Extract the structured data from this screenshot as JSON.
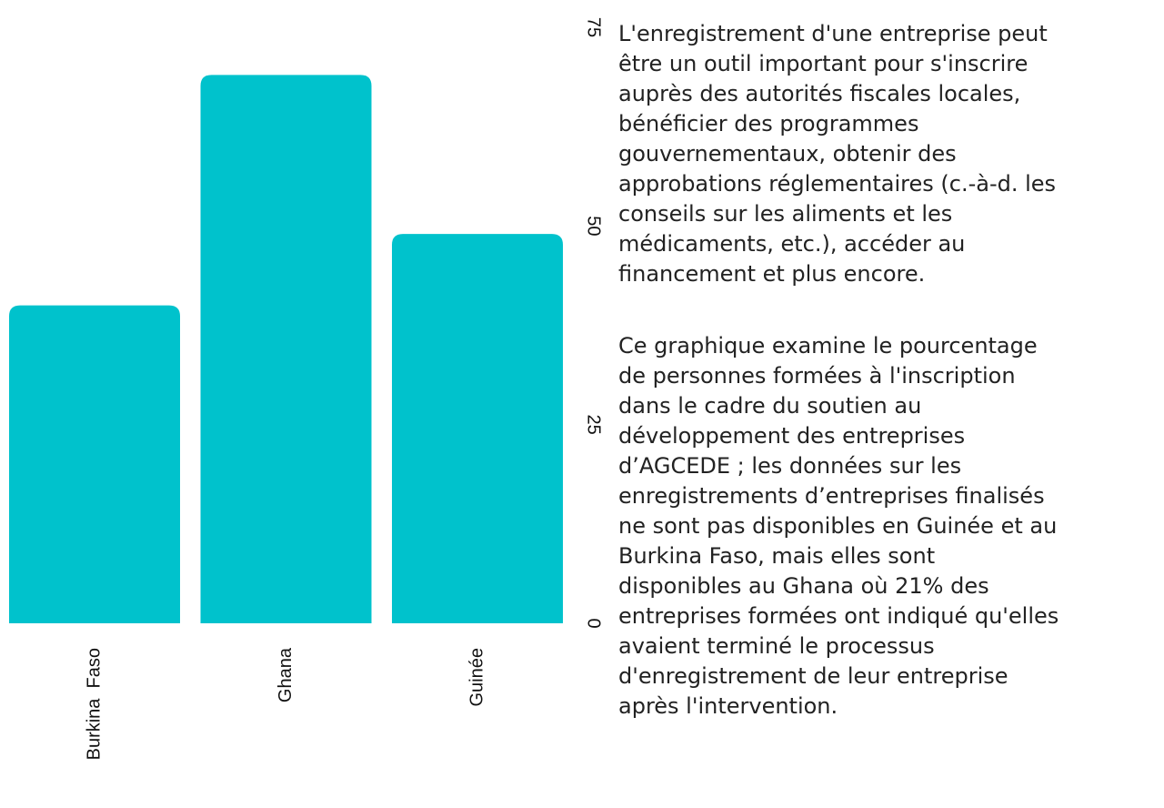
{
  "chart_data": {
    "type": "bar",
    "categories": [
      "Burkina  Faso",
      "Ghana",
      "Guinée"
    ],
    "values": [
      40,
      69,
      49
    ],
    "color": "#00c2cc",
    "ylim": [
      0,
      75
    ],
    "yticks": [
      0,
      25,
      50,
      75
    ],
    "grid": false
  },
  "description": [
    [
      "L'enregistrement d'une entreprise peut",
      "être un outil important pour s'inscrire",
      "auprès des autorités fiscales locales,",
      "bénéficier des programmes",
      "gouvernementaux, obtenir des",
      "approbations réglementaires (c.-à-d. les",
      "conseils sur les aliments et les",
      "médicaments, etc.), accéder au",
      "financement et plus encore."
    ],
    [
      "Ce graphique examine le pourcentage",
      "de personnes formées à l'inscription",
      "dans le cadre du soutien au",
      "développement des entreprises",
      "d’AGCEDE ; les données sur les",
      "enregistrements d’entreprises finalisés",
      "ne sont pas disponibles en Guinée et au",
      "Burkina Faso, mais elles sont",
      "disponibles au Ghana où 21% des",
      "entreprises formées ont indiqué qu'elles",
      "avaient terminé le processus",
      "d'enregistrement de leur entreprise",
      "après l'intervention."
    ]
  ]
}
